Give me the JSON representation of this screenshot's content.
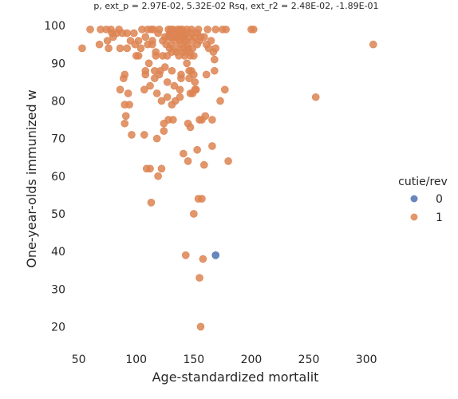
{
  "chart_data": {
    "type": "scatter",
    "title": "p, ext_p = 2.97E-02, 5.32E-02 Rsq, ext_r2 = 2.48E-02, -1.89E-01",
    "xlabel": "Age-standardized mortalit",
    "ylabel": "One-year-olds immunized w",
    "xlim": [
      35,
      320
    ],
    "ylim": [
      15,
      103
    ],
    "xticks": [
      50,
      100,
      150,
      200,
      250,
      300
    ],
    "yticks": [
      20,
      30,
      40,
      50,
      60,
      70,
      80,
      90,
      100
    ],
    "grid": false,
    "legend": {
      "title": "cutie/rev",
      "placement": "right",
      "entries": [
        {
          "label": "0",
          "color": "#4c72b0"
        },
        {
          "label": "1",
          "color": "#dd8452"
        }
      ]
    },
    "series": [
      {
        "name": "0",
        "color": "#4c72b0",
        "points": [
          [
            169,
            39
          ]
        ]
      },
      {
        "name": "1",
        "color": "#dd8452",
        "points": [
          [
            53,
            94
          ],
          [
            60,
            99
          ],
          [
            68,
            95
          ],
          [
            69,
            99
          ],
          [
            74,
            99
          ],
          [
            75,
            96
          ],
          [
            76,
            94
          ],
          [
            78,
            99
          ],
          [
            79,
            98
          ],
          [
            80,
            97
          ],
          [
            83,
            98
          ],
          [
            85,
            99
          ],
          [
            86,
            83
          ],
          [
            86,
            94
          ],
          [
            88,
            98
          ],
          [
            89,
            86
          ],
          [
            90,
            87
          ],
          [
            90,
            79
          ],
          [
            90,
            74
          ],
          [
            91,
            76
          ],
          [
            92,
            94
          ],
          [
            92,
            98
          ],
          [
            93,
            82
          ],
          [
            94,
            79
          ],
          [
            95,
            96
          ],
          [
            96,
            71
          ],
          [
            98,
            98
          ],
          [
            99,
            95
          ],
          [
            100,
            92
          ],
          [
            102,
            96
          ],
          [
            102,
            92
          ],
          [
            104,
            94
          ],
          [
            105,
            99
          ],
          [
            107,
            83
          ],
          [
            107,
            71
          ],
          [
            108,
            97
          ],
          [
            108,
            87
          ],
          [
            108,
            88
          ],
          [
            109,
            62
          ],
          [
            110,
            95
          ],
          [
            110,
            99
          ],
          [
            111,
            90
          ],
          [
            112,
            84
          ],
          [
            112,
            62
          ],
          [
            113,
            53
          ],
          [
            113,
            99
          ],
          [
            114,
            95
          ],
          [
            114,
            96
          ],
          [
            115,
            99
          ],
          [
            116,
            86
          ],
          [
            116,
            88
          ],
          [
            117,
            93
          ],
          [
            117,
            92
          ],
          [
            118,
            82
          ],
          [
            118,
            70
          ],
          [
            119,
            60
          ],
          [
            119,
            98
          ],
          [
            120,
            99
          ],
          [
            120,
            87
          ],
          [
            121,
            88
          ],
          [
            122,
            62
          ],
          [
            122,
            80
          ],
          [
            123,
            96
          ],
          [
            123,
            92
          ],
          [
            124,
            74
          ],
          [
            124,
            72
          ],
          [
            125,
            97
          ],
          [
            125,
            89
          ],
          [
            126,
            95
          ],
          [
            127,
            92
          ],
          [
            127,
            85
          ],
          [
            127,
            81
          ],
          [
            128,
            99
          ],
          [
            128,
            97
          ],
          [
            128,
            75
          ],
          [
            129,
            98
          ],
          [
            129,
            94
          ],
          [
            130,
            99
          ],
          [
            130,
            97
          ],
          [
            130,
            95
          ],
          [
            131,
            93
          ],
          [
            131,
            88
          ],
          [
            131,
            79
          ],
          [
            132,
            75
          ],
          [
            132,
            99
          ],
          [
            133,
            97
          ],
          [
            133,
            84
          ],
          [
            134,
            98
          ],
          [
            134,
            96
          ],
          [
            134,
            80
          ],
          [
            135,
            93
          ],
          [
            135,
            94
          ],
          [
            136,
            99
          ],
          [
            136,
            97
          ],
          [
            137,
            98
          ],
          [
            137,
            92
          ],
          [
            138,
            99
          ],
          [
            138,
            96
          ],
          [
            138,
            83
          ],
          [
            138,
            81
          ],
          [
            139,
            95
          ],
          [
            139,
            87
          ],
          [
            139,
            86
          ],
          [
            140,
            99
          ],
          [
            140,
            98
          ],
          [
            140,
            97
          ],
          [
            141,
            94
          ],
          [
            141,
            93
          ],
          [
            141,
            66
          ],
          [
            142,
            97
          ],
          [
            142,
            92
          ],
          [
            143,
            98
          ],
          [
            143,
            96
          ],
          [
            143,
            39
          ],
          [
            144,
            99
          ],
          [
            144,
            95
          ],
          [
            144,
            90
          ],
          [
            145,
            94
          ],
          [
            145,
            74
          ],
          [
            145,
            64
          ],
          [
            146,
            97
          ],
          [
            146,
            93
          ],
          [
            146,
            88
          ],
          [
            146,
            86
          ],
          [
            147,
            92
          ],
          [
            147,
            82
          ],
          [
            147,
            73
          ],
          [
            148,
            99
          ],
          [
            148,
            98
          ],
          [
            148,
            88
          ],
          [
            149,
            96
          ],
          [
            149,
            94
          ],
          [
            149,
            82
          ],
          [
            150,
            92
          ],
          [
            150,
            87
          ],
          [
            150,
            50
          ],
          [
            151,
            97
          ],
          [
            151,
            85
          ],
          [
            151,
            83
          ],
          [
            152,
            83
          ],
          [
            153,
            98
          ],
          [
            153,
            95
          ],
          [
            153,
            67
          ],
          [
            154,
            99
          ],
          [
            154,
            54
          ],
          [
            155,
            96
          ],
          [
            155,
            75
          ],
          [
            155,
            33
          ],
          [
            156,
            97
          ],
          [
            156,
            20
          ],
          [
            157,
            54
          ],
          [
            157,
            75
          ],
          [
            158,
            38
          ],
          [
            159,
            97
          ],
          [
            159,
            63
          ],
          [
            160,
            76
          ],
          [
            161,
            95
          ],
          [
            161,
            87
          ],
          [
            162,
            99
          ],
          [
            163,
            94
          ],
          [
            165,
            96
          ],
          [
            166,
            68
          ],
          [
            166,
            75
          ],
          [
            167,
            93
          ],
          [
            168,
            88
          ],
          [
            168,
            91
          ],
          [
            169,
            99
          ],
          [
            169,
            94
          ],
          [
            173,
            80
          ],
          [
            175,
            99
          ],
          [
            177,
            83
          ],
          [
            178,
            99
          ],
          [
            180,
            64
          ],
          [
            200,
            99
          ],
          [
            202,
            99
          ],
          [
            256,
            81
          ],
          [
            306,
            95
          ]
        ]
      }
    ]
  }
}
